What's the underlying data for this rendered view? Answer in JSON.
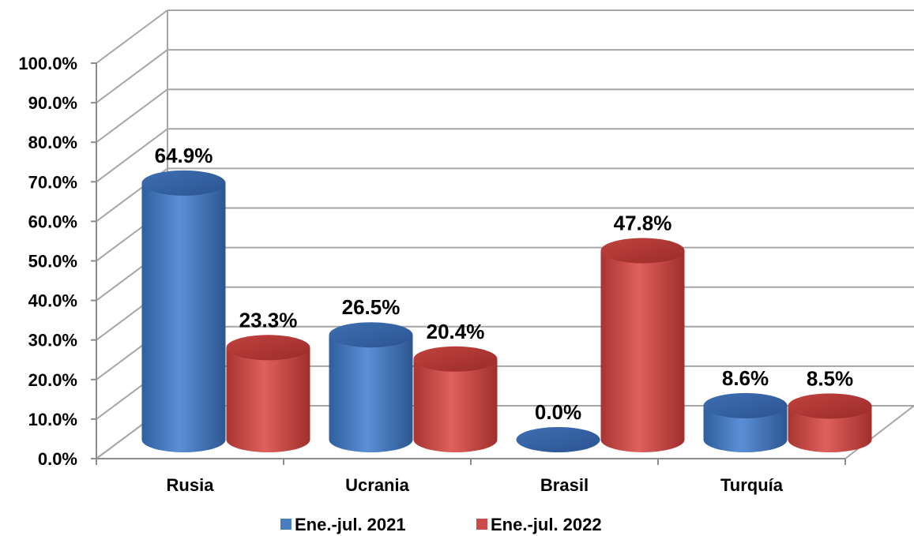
{
  "chart_data": {
    "type": "bar",
    "style": "3d-cylinder",
    "title": "",
    "xlabel": "",
    "ylabel": "",
    "categories": [
      "Rusia",
      "Ucrania",
      "Brasil",
      "Turquía"
    ],
    "series": [
      {
        "name": "Ene.-jul. 2021",
        "color": "#4a7cc2",
        "values": [
          64.9,
          26.5,
          0.0,
          8.6
        ],
        "labels": [
          "64.9%",
          "26.5%",
          "0.0%",
          "8.6%"
        ]
      },
      {
        "name": "Ene.-jul. 2022",
        "color": "#cc4a47",
        "values": [
          23.3,
          20.4,
          47.8,
          8.5
        ],
        "labels": [
          "23.3%",
          "20.4%",
          "47.8%",
          "8.5%"
        ]
      }
    ],
    "y_ticks": [
      "0.0%",
      "10.0%",
      "20.0%",
      "30.0%",
      "40.0%",
      "50.0%",
      "60.0%",
      "70.0%",
      "80.0%",
      "90.0%",
      "100.0%"
    ],
    "ylim": [
      0,
      100
    ],
    "grid": true,
    "legend_position": "bottom"
  }
}
